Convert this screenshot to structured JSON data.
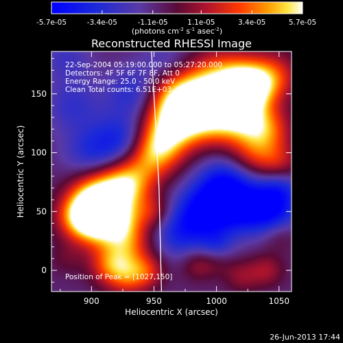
{
  "chart_data": {
    "type": "heatmap",
    "title": "Reconstructed RHESSI Image",
    "xlabel": "Heliocentric X (arcsec)",
    "ylabel": "Heliocentric Y (arcsec)",
    "xlim": [
      868,
      1060
    ],
    "ylim": [
      -18,
      186
    ],
    "xticks": [
      900,
      950,
      1000,
      1050
    ],
    "yticks": [
      0,
      50,
      100,
      150
    ],
    "colorbar": {
      "min": -5.7e-05,
      "max": 5.7e-05,
      "tick_labels": [
        "-5.7e-05",
        "-3.4e-05",
        "-1.1e-05",
        "1.1e-05",
        "3.4e-05",
        "5.7e-05"
      ],
      "tick_values": [
        -5.7e-05,
        -3.4e-05,
        -1.1e-05,
        1.1e-05,
        3.4e-05,
        5.7e-05
      ],
      "unit_prefix": "(photons cm",
      "unit_exp1": "-2",
      "unit_mid": " s",
      "unit_exp2": "-1",
      "unit_mid2": " asec",
      "unit_exp3": "-2",
      "unit_suffix": ")"
    },
    "annotations": [
      "22-Sep-2004 05:19:00.000 to 05:27:20.000",
      "Detectors: 4F 5F 6F 7F 8F, Att 0",
      "Energy Range: 25.0 - 50.0 keV",
      "Clean     Total counts: 6.51E+03"
    ],
    "peak_label": "Position of Peak = [1027,150]",
    "peak_position": [
      1027,
      150
    ],
    "limb": [
      [
        948,
        186
      ],
      [
        951,
        130
      ],
      [
        954,
        70
      ],
      [
        956,
        -18
      ]
    ],
    "blobs": [
      {
        "x": 1025,
        "y": 155,
        "v": 1.0,
        "s": 14
      },
      {
        "x": 1005,
        "y": 160,
        "v": 0.75,
        "s": 18
      },
      {
        "x": 985,
        "y": 145,
        "v": 0.7,
        "s": 16
      },
      {
        "x": 965,
        "y": 150,
        "v": 0.55,
        "s": 16
      },
      {
        "x": 960,
        "y": 125,
        "v": 0.55,
        "s": 16
      },
      {
        "x": 975,
        "y": 125,
        "v": 0.5,
        "s": 15
      },
      {
        "x": 1000,
        "y": 125,
        "v": 0.45,
        "s": 14
      },
      {
        "x": 1020,
        "y": 130,
        "v": 0.65,
        "s": 14
      },
      {
        "x": 1040,
        "y": 120,
        "v": 0.55,
        "s": 14
      },
      {
        "x": 1030,
        "y": 100,
        "v": 0.4,
        "s": 14
      },
      {
        "x": 1045,
        "y": 165,
        "v": 0.5,
        "s": 14
      },
      {
        "x": 1050,
        "y": 90,
        "v": 0.35,
        "s": 12
      },
      {
        "x": 945,
        "y": 95,
        "v": 0.45,
        "s": 15
      },
      {
        "x": 955,
        "y": 105,
        "v": 0.5,
        "s": 14
      },
      {
        "x": 930,
        "y": 75,
        "v": 0.55,
        "s": 14
      },
      {
        "x": 915,
        "y": 65,
        "v": 0.7,
        "s": 16
      },
      {
        "x": 900,
        "y": 60,
        "v": 0.6,
        "s": 14
      },
      {
        "x": 905,
        "y": 40,
        "v": 0.8,
        "s": 14
      },
      {
        "x": 890,
        "y": 45,
        "v": 0.6,
        "s": 13
      },
      {
        "x": 925,
        "y": 40,
        "v": 0.55,
        "s": 14
      },
      {
        "x": 950,
        "y": 50,
        "v": 0.3,
        "s": 10
      },
      {
        "x": 930,
        "y": 20,
        "v": 0.4,
        "s": 12
      },
      {
        "x": 915,
        "y": 5,
        "v": 0.55,
        "s": 12
      },
      {
        "x": 930,
        "y": -5,
        "v": 0.5,
        "s": 12
      },
      {
        "x": 945,
        "y": 0,
        "v": 0.35,
        "s": 10
      },
      {
        "x": 880,
        "y": 10,
        "v": 0.15,
        "s": 10
      },
      {
        "x": 985,
        "y": 5,
        "v": 0.25,
        "s": 10
      },
      {
        "x": 1000,
        "y": 10,
        "v": 0.2,
        "s": 10
      },
      {
        "x": 1020,
        "y": -5,
        "v": 0.25,
        "s": 10
      },
      {
        "x": 1040,
        "y": 0,
        "v": 0.3,
        "s": 10
      },
      {
        "x": 1050,
        "y": 30,
        "v": 0.2,
        "s": 10
      },
      {
        "x": 990,
        "y": 50,
        "v": -0.75,
        "s": 16
      },
      {
        "x": 1020,
        "y": 55,
        "v": -0.7,
        "s": 16
      },
      {
        "x": 1045,
        "y": 50,
        "v": -0.55,
        "s": 14
      },
      {
        "x": 970,
        "y": 30,
        "v": -0.4,
        "s": 14
      },
      {
        "x": 1005,
        "y": 75,
        "v": -0.5,
        "s": 14
      },
      {
        "x": 925,
        "y": 110,
        "v": -0.45,
        "s": 16
      },
      {
        "x": 900,
        "y": 100,
        "v": -0.35,
        "s": 16
      },
      {
        "x": 935,
        "y": 150,
        "v": -0.4,
        "s": 16
      },
      {
        "x": 885,
        "y": 140,
        "v": -0.3,
        "s": 16
      },
      {
        "x": 960,
        "y": 175,
        "v": -0.25,
        "s": 14
      },
      {
        "x": 1000,
        "y": 20,
        "v": -0.35,
        "s": 10
      },
      {
        "x": 1050,
        "y": 70,
        "v": -0.4,
        "s": 12
      },
      {
        "x": 880,
        "y": 180,
        "v": -0.25,
        "s": 14
      }
    ]
  },
  "footer": {
    "timestamp": "26-Jun-2013 17:44"
  }
}
